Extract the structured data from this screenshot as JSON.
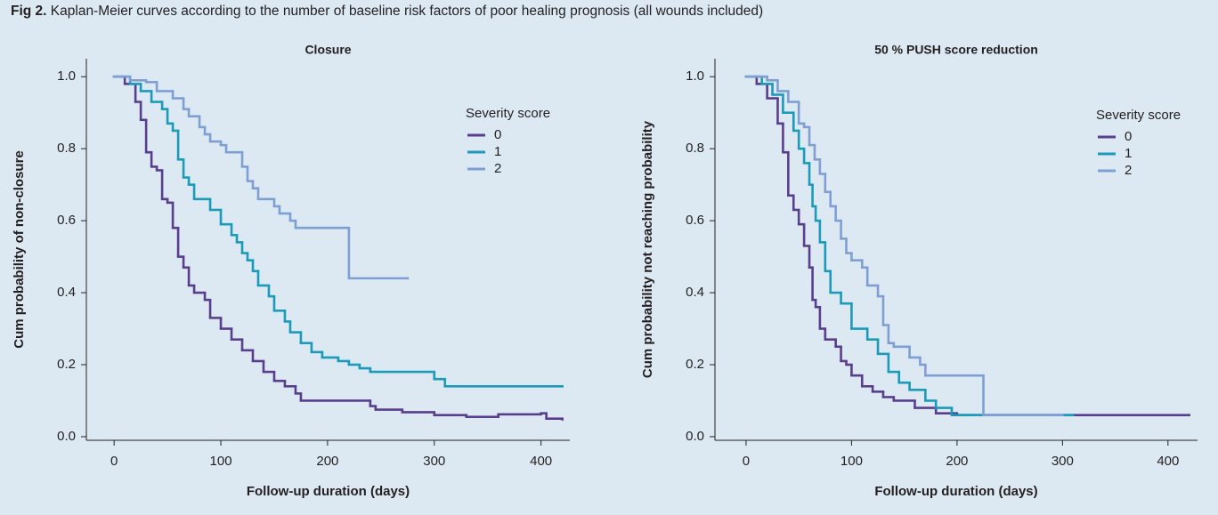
{
  "figure": {
    "label": "Fig 2.",
    "caption": "Kaplan-Meier curves according to the number of baseline risk factors of poor healing prognosis (all wounds included)"
  },
  "chart_data": [
    {
      "type": "step",
      "title": "Closure",
      "x_label": "Follow-up duration (days)",
      "y_label": "Cum probability of non-closure",
      "legend_title": "Severity score",
      "legend": "upper right",
      "xlim": [
        -26,
        427
      ],
      "ylim": [
        -0.01,
        1.05
      ],
      "xticks": [
        0,
        100,
        200,
        300,
        400
      ],
      "yticks": [
        {
          "value": 0,
          "label": "0.0"
        },
        {
          "value": 0.2,
          "label": "0.2"
        },
        {
          "value": 0.4,
          "label": "0.4"
        },
        {
          "value": 0.6,
          "label": "0.6"
        },
        {
          "value": 0.8,
          "label": "0.8"
        },
        {
          "value": 1,
          "label": "1.0"
        }
      ],
      "series": [
        {
          "name": "0",
          "color": "#5a3e8e",
          "x": [
            0,
            10,
            20,
            25,
            30,
            35,
            40,
            45,
            50,
            55,
            60,
            65,
            70,
            75,
            85,
            90,
            100,
            110,
            120,
            130,
            140,
            150,
            160,
            170,
            175,
            240,
            245,
            270,
            300,
            330,
            360,
            400,
            405,
            420
          ],
          "values": [
            1.0,
            0.98,
            0.93,
            0.88,
            0.79,
            0.75,
            0.74,
            0.66,
            0.65,
            0.58,
            0.5,
            0.47,
            0.42,
            0.4,
            0.38,
            0.33,
            0.3,
            0.27,
            0.24,
            0.21,
            0.18,
            0.155,
            0.14,
            0.12,
            0.1,
            0.085,
            0.075,
            0.068,
            0.06,
            0.055,
            0.062,
            0.065,
            0.05,
            0.048
          ]
        },
        {
          "name": "1",
          "color": "#1b9ab9",
          "x": [
            0,
            15,
            25,
            35,
            45,
            50,
            55,
            60,
            65,
            70,
            75,
            90,
            100,
            110,
            115,
            120,
            125,
            130,
            135,
            145,
            150,
            160,
            165,
            175,
            185,
            195,
            210,
            220,
            230,
            240,
            300,
            310,
            420
          ],
          "values": [
            1.0,
            0.98,
            0.96,
            0.93,
            0.91,
            0.87,
            0.85,
            0.77,
            0.72,
            0.7,
            0.66,
            0.63,
            0.59,
            0.56,
            0.54,
            0.51,
            0.49,
            0.46,
            0.42,
            0.39,
            0.35,
            0.32,
            0.29,
            0.26,
            0.235,
            0.22,
            0.21,
            0.2,
            0.19,
            0.18,
            0.16,
            0.14,
            0.14
          ]
        },
        {
          "name": "2",
          "color": "#7f9fd4",
          "x": [
            0,
            15,
            30,
            40,
            55,
            65,
            70,
            80,
            85,
            90,
            100,
            105,
            120,
            125,
            130,
            135,
            150,
            155,
            165,
            170,
            220,
            275
          ],
          "values": [
            1.0,
            0.99,
            0.985,
            0.96,
            0.94,
            0.91,
            0.89,
            0.86,
            0.84,
            0.82,
            0.81,
            0.79,
            0.75,
            0.71,
            0.69,
            0.66,
            0.64,
            0.62,
            0.6,
            0.58,
            0.44,
            0.44
          ]
        }
      ]
    },
    {
      "type": "step",
      "title": "50 % PUSH score reduction",
      "x_label": "Follow-up duration (days)",
      "y_label": "Cum probability not reaching probability",
      "legend_title": "Severity score",
      "legend": "upper right",
      "xlim": [
        -29.5,
        428
      ],
      "ylim": [
        -0.01,
        1.05
      ],
      "xticks": [
        0,
        100,
        200,
        300,
        400
      ],
      "yticks": [
        {
          "value": 0,
          "label": "0.0"
        },
        {
          "value": 0.2,
          "label": "0.2"
        },
        {
          "value": 0.4,
          "label": "0.4"
        },
        {
          "value": 0.6,
          "label": "0.6"
        },
        {
          "value": 0.8,
          "label": "0.8"
        },
        {
          "value": 1,
          "label": "1.0"
        }
      ],
      "series": [
        {
          "name": "0",
          "color": "#5a3e8e",
          "x": [
            0,
            10,
            20,
            30,
            35,
            40,
            45,
            50,
            55,
            60,
            63,
            66,
            70,
            75,
            85,
            90,
            95,
            100,
            110,
            120,
            130,
            140,
            160,
            180,
            200,
            420
          ],
          "values": [
            1.0,
            0.98,
            0.94,
            0.87,
            0.79,
            0.67,
            0.63,
            0.59,
            0.53,
            0.47,
            0.38,
            0.36,
            0.3,
            0.27,
            0.25,
            0.21,
            0.2,
            0.17,
            0.14,
            0.125,
            0.11,
            0.1,
            0.08,
            0.065,
            0.06,
            0.06
          ]
        },
        {
          "name": "1",
          "color": "#1b9ab9",
          "x": [
            0,
            15,
            25,
            35,
            45,
            50,
            55,
            60,
            63,
            66,
            70,
            75,
            80,
            90,
            100,
            115,
            125,
            135,
            145,
            155,
            170,
            180,
            195,
            310
          ],
          "values": [
            1.0,
            0.98,
            0.95,
            0.9,
            0.85,
            0.8,
            0.76,
            0.7,
            0.64,
            0.6,
            0.54,
            0.46,
            0.4,
            0.37,
            0.3,
            0.27,
            0.23,
            0.18,
            0.15,
            0.13,
            0.1,
            0.08,
            0.06,
            0.06
          ]
        },
        {
          "name": "2",
          "color": "#7f9fd4",
          "x": [
            0,
            20,
            30,
            40,
            50,
            55,
            60,
            65,
            70,
            75,
            80,
            85,
            90,
            95,
            100,
            110,
            115,
            125,
            130,
            135,
            140,
            155,
            165,
            170,
            225,
            300
          ],
          "values": [
            1.0,
            0.99,
            0.96,
            0.93,
            0.87,
            0.86,
            0.81,
            0.77,
            0.73,
            0.68,
            0.64,
            0.6,
            0.55,
            0.51,
            0.49,
            0.47,
            0.42,
            0.39,
            0.31,
            0.26,
            0.25,
            0.22,
            0.2,
            0.17,
            0.06,
            0.06
          ]
        }
      ]
    }
  ]
}
